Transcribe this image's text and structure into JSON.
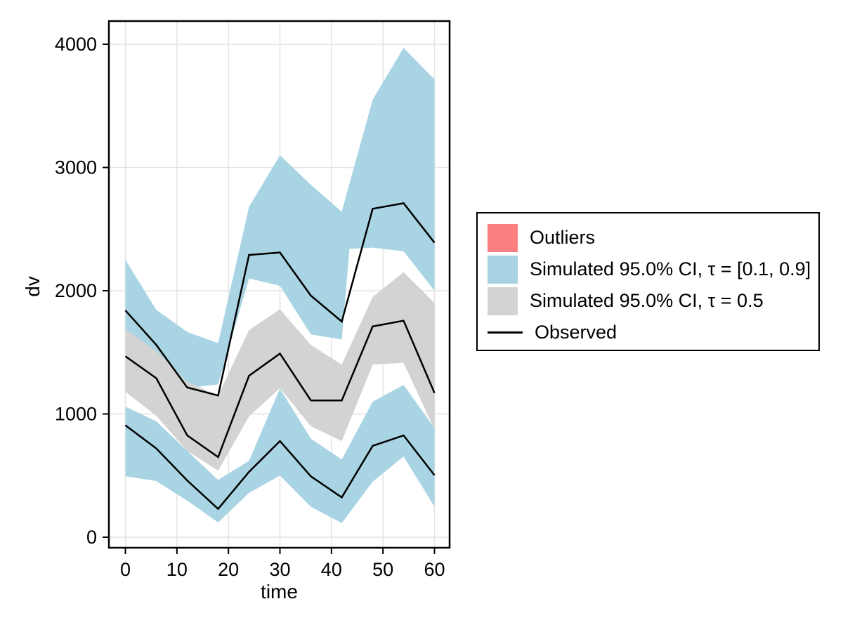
{
  "figure": {
    "background": "#ffffff",
    "border_color": "#000000",
    "gridline_color": "#e4e4e4",
    "observed_line_color": "#000000"
  },
  "legend": {
    "items": [
      {
        "label": "Outliers",
        "swatch": "rect",
        "color": "#fa8080"
      },
      {
        "label": "Simulated 95.0% CI, τ = [0.1, 0.9]",
        "swatch": "rect",
        "color": "#a9d4e3"
      },
      {
        "label": "Simulated 95.0% CI, τ = 0.5",
        "swatch": "rect",
        "color": "#d3d3d3"
      },
      {
        "label": "Observed",
        "swatch": "line",
        "color": "#000000"
      }
    ]
  },
  "chart_data": {
    "type": "area",
    "title": "",
    "xlabel": "time",
    "ylabel": "dv",
    "x_ticks": [
      0,
      10,
      20,
      30,
      40,
      50,
      60
    ],
    "x_tick_labels": [
      "0",
      "10",
      "20",
      "30",
      "40",
      "50",
      "60"
    ],
    "y_ticks": [
      0,
      1000,
      2000,
      3000,
      4000
    ],
    "y_tick_labels": [
      "0",
      "1000",
      "2000",
      "3000",
      "4000"
    ],
    "xlim": [
      -3.2,
      63.0
    ],
    "ylim": [
      -85,
      4190
    ],
    "grid": true,
    "legend_position": "right-outside",
    "bands": [
      {
        "name": "simulated-ci-tau-0.1-0.9-upper",
        "legend_label": "Simulated 95.0% CI, τ = [0.1, 0.9]",
        "color": "#a9d4e3",
        "x": [
          0,
          6,
          12,
          18,
          24,
          30,
          36,
          42,
          43.5,
          48,
          54,
          60
        ],
        "upper": [
          2250,
          1845,
          1665,
          1575,
          2680,
          3100,
          2860,
          2640,
          2870,
          3550,
          3970,
          3715
        ],
        "lower": [
          1500,
          1390,
          1210,
          1240,
          2100,
          2040,
          1645,
          1605,
          2340,
          2350,
          2320,
          2000
        ]
      },
      {
        "name": "simulated-ci-tau-0.5",
        "legend_label": "Simulated 95.0% CI, τ = 0.5",
        "color": "#d3d3d3",
        "x": [
          0,
          6,
          12,
          18,
          24,
          30,
          36,
          42,
          48,
          54,
          60
        ],
        "upper": [
          1690,
          1510,
          1260,
          1150,
          1680,
          1850,
          1560,
          1400,
          1950,
          2150,
          1900
        ],
        "lower": [
          1180,
          985,
          700,
          540,
          980,
          1210,
          900,
          780,
          1400,
          1415,
          875
        ]
      },
      {
        "name": "simulated-ci-tau-0.1-0.9-lower",
        "legend_label": "Simulated 95.0% CI, τ = [0.1, 0.9]",
        "color": "#a9d4e3",
        "x": [
          0,
          6,
          12,
          18,
          24,
          30,
          36,
          42,
          48,
          54,
          60
        ],
        "upper": [
          1060,
          940,
          700,
          465,
          620,
          1206,
          800,
          630,
          1100,
          1236,
          885
        ],
        "lower": [
          495,
          456,
          296,
          120,
          360,
          500,
          247,
          114,
          450,
          655,
          247
        ]
      }
    ],
    "lines": [
      {
        "name": "observed-upper",
        "legend_label": "Observed",
        "color": "#000000",
        "x": [
          0,
          6,
          12,
          18,
          24,
          30,
          36,
          42,
          48,
          54,
          60
        ],
        "y": [
          1840,
          1560,
          1215,
          1150,
          2290,
          2310,
          1960,
          1750,
          2665,
          2710,
          2390
        ]
      },
      {
        "name": "observed-median",
        "legend_label": "Observed",
        "color": "#000000",
        "x": [
          0,
          6,
          12,
          18,
          24,
          30,
          36,
          42,
          48,
          54,
          60
        ],
        "y": [
          1468,
          1290,
          826,
          650,
          1310,
          1490,
          1110,
          1110,
          1710,
          1757,
          1170
        ]
      },
      {
        "name": "observed-lower",
        "legend_label": "Observed",
        "color": "#000000",
        "x": [
          0,
          6,
          12,
          18,
          24,
          30,
          36,
          42,
          48,
          54,
          60
        ],
        "y": [
          908,
          720,
          460,
          230,
          530,
          780,
          494,
          323,
          741,
          826,
          503
        ]
      }
    ]
  }
}
